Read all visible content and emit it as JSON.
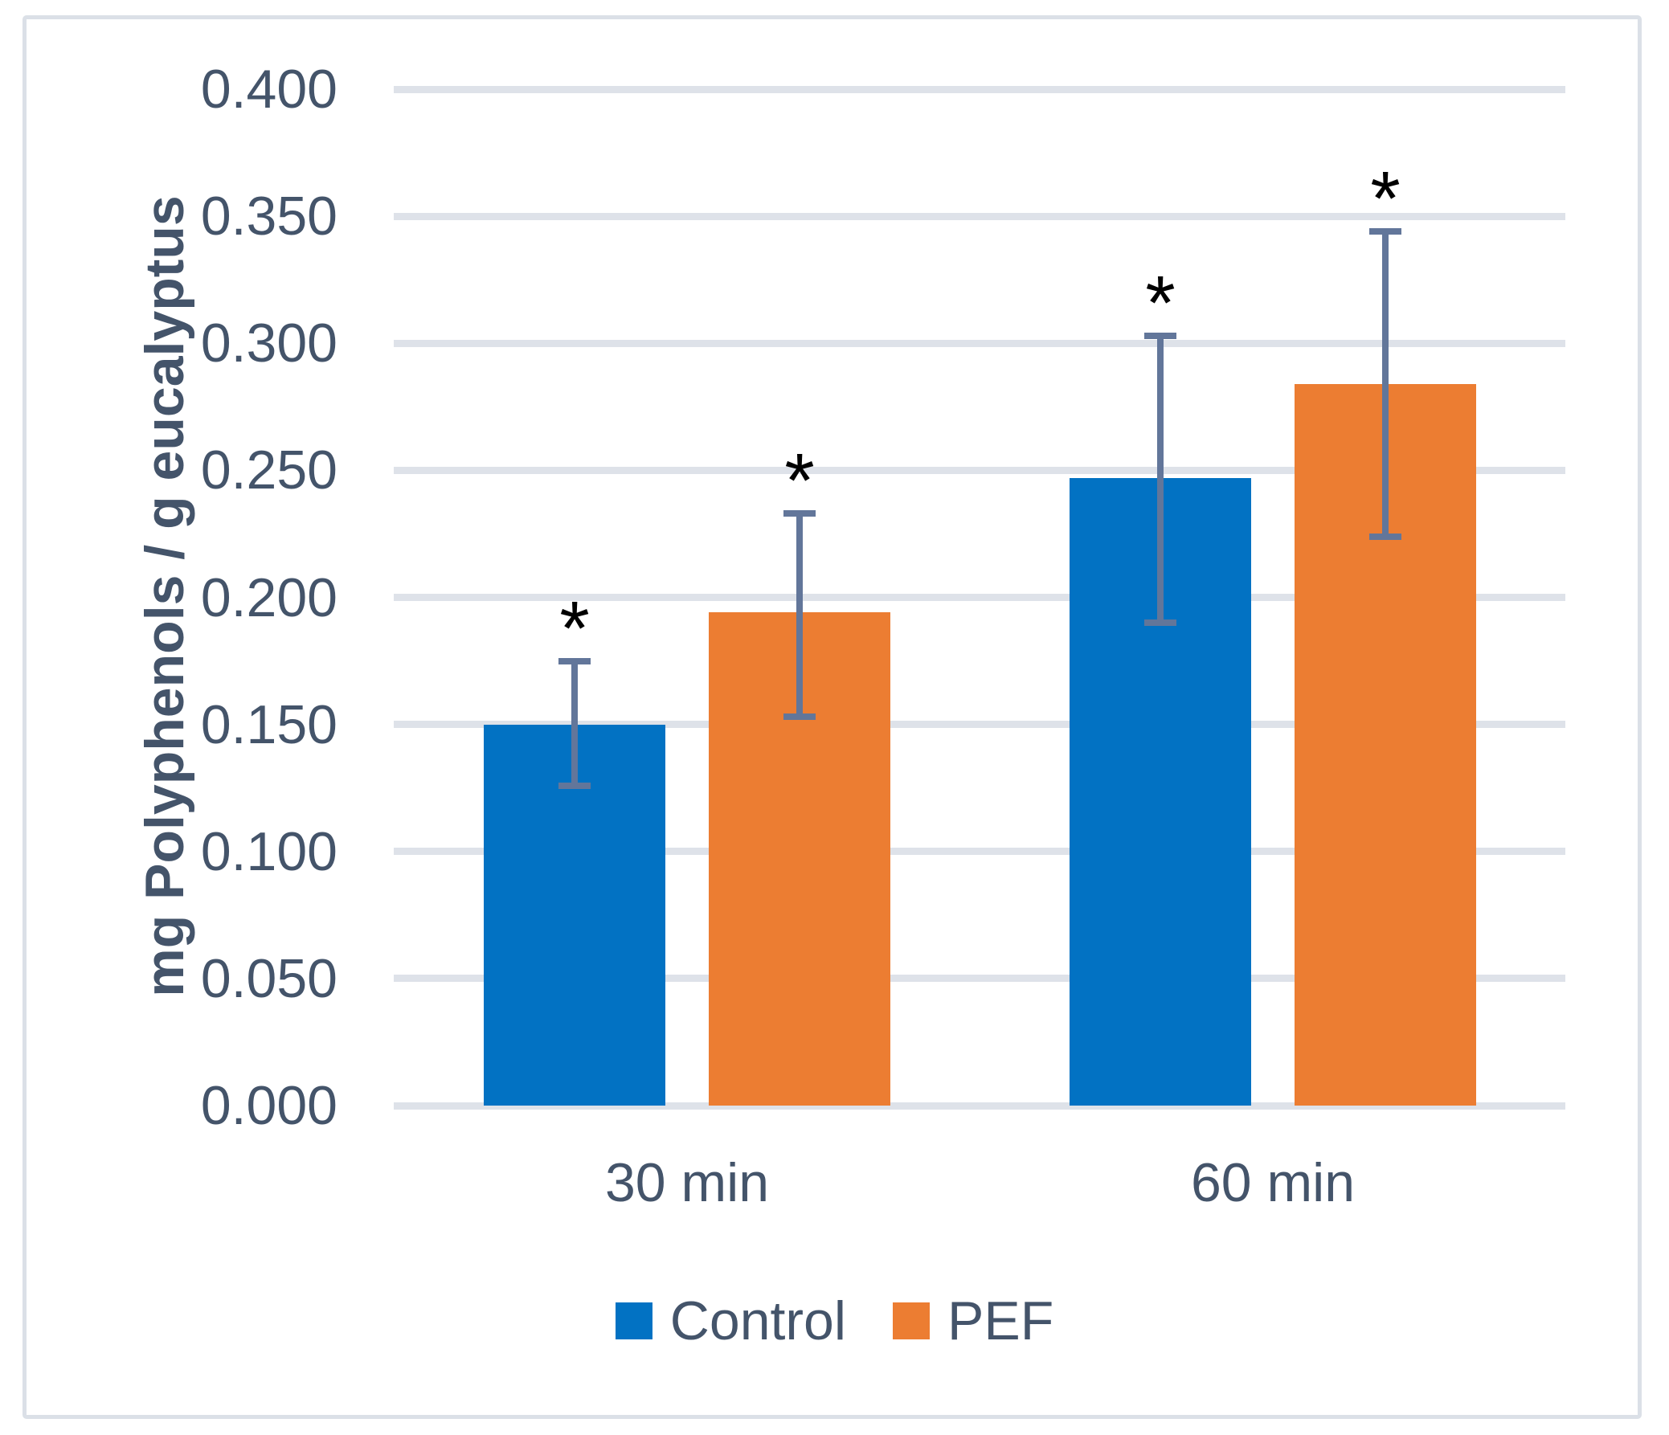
{
  "figure": {
    "background": "#ffffff",
    "border_color": "#dbe0e7"
  },
  "chart_data": {
    "type": "bar",
    "title": "",
    "categories": [
      "30 min",
      "60 min"
    ],
    "series": [
      {
        "name": "Control",
        "color": "#0272c3",
        "values": [
          0.15,
          0.247
        ],
        "error_low": [
          0.126,
          0.19
        ],
        "error_high": [
          0.175,
          0.303
        ],
        "significance": [
          "*",
          "*"
        ]
      },
      {
        "name": "PEF",
        "color": "#ec7d32",
        "values": [
          0.194,
          0.284
        ],
        "error_low": [
          0.153,
          0.224
        ],
        "error_high": [
          0.233,
          0.344
        ],
        "significance": [
          "*",
          "*"
        ]
      }
    ],
    "xlabel": "",
    "ylabel": "mg Polyphenols / g eucalyptus",
    "ylim": [
      0,
      0.4
    ],
    "ytick_step": 0.05,
    "ytick_labels": [
      "0.000",
      "0.050",
      "0.100",
      "0.150",
      "0.200",
      "0.250",
      "0.300",
      "0.350",
      "0.400"
    ],
    "grid": true,
    "gridline_color": "#dee2e9",
    "error_bar_color": "#62769a",
    "significance_color": "#000000",
    "text_color": "#44546a",
    "legend_position": "bottom"
  }
}
